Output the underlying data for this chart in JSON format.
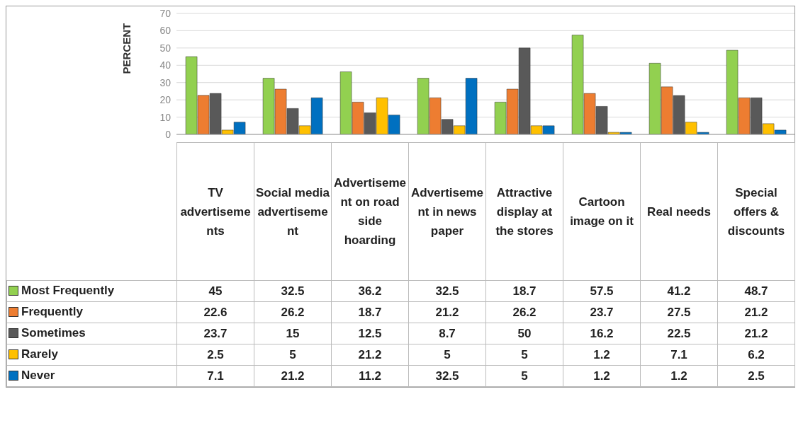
{
  "chart_data": {
    "type": "bar",
    "ylabel": "PERCENT",
    "categories": [
      "TV advertisements",
      "Social media advertisement",
      "Advertisement on road side hoarding",
      "Advertisement in news paper",
      "Attractive display at the stores",
      "Cartoon image on it",
      "Real needs",
      "Special offers & discounts"
    ],
    "series": [
      {
        "name": "Most Frequently",
        "color": "#92d050",
        "values": [
          45,
          32.5,
          36.2,
          32.5,
          18.7,
          57.5,
          41.2,
          48.7
        ]
      },
      {
        "name": "Frequently",
        "color": "#ed7d31",
        "values": [
          22.6,
          26.2,
          18.7,
          21.2,
          26.2,
          23.7,
          27.5,
          21.2
        ]
      },
      {
        "name": "Sometimes",
        "color": "#595959",
        "values": [
          23.7,
          15,
          12.5,
          8.7,
          50,
          16.2,
          22.5,
          21.2
        ]
      },
      {
        "name": "Rarely",
        "color": "#ffc000",
        "values": [
          2.5,
          5,
          21.2,
          5,
          5,
          1.2,
          7.1,
          6.2
        ]
      },
      {
        "name": "Never",
        "color": "#0070c0",
        "values": [
          7.1,
          21.2,
          11.2,
          32.5,
          5,
          1.2,
          1.2,
          2.5
        ]
      }
    ],
    "ylim": [
      0,
      70
    ],
    "yticks": [
      0,
      10,
      20,
      30,
      40,
      50,
      60,
      70
    ],
    "grid": "y",
    "legend": "bottom left",
    "data_labels": true
  }
}
